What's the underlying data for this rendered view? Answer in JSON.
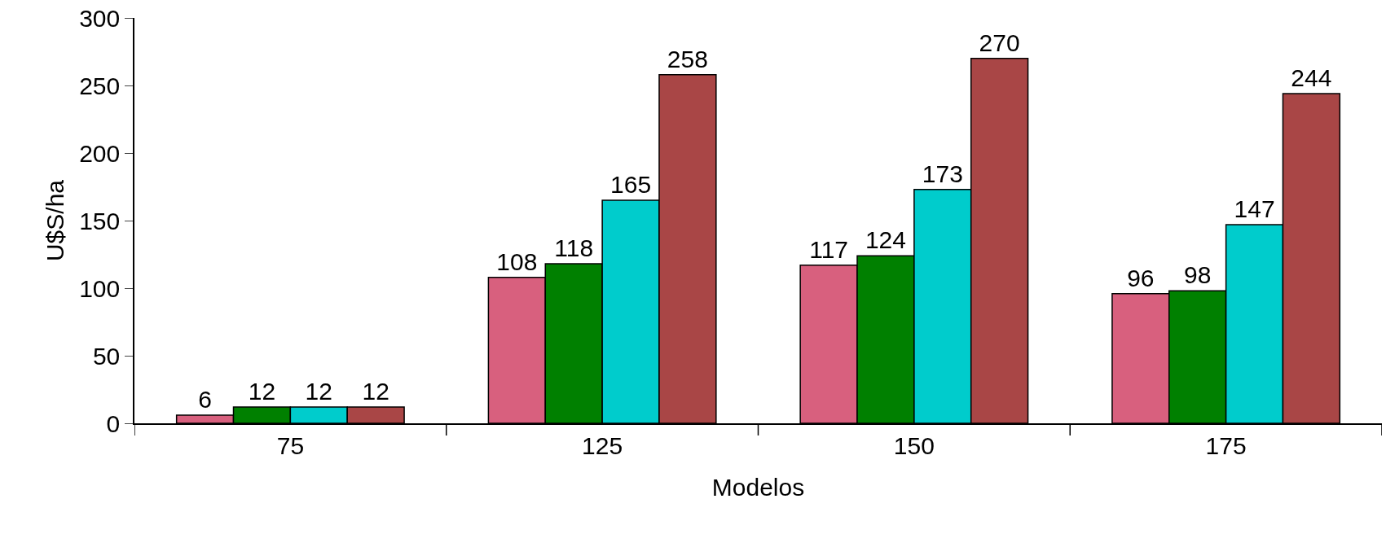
{
  "chart_data": {
    "type": "bar",
    "xlabel": "Modelos",
    "ylabel": "U$S/ha",
    "categories": [
      "75",
      "125",
      "150",
      "175"
    ],
    "series": [
      {
        "color": "#d8607e",
        "values": [
          6,
          108,
          117,
          96
        ]
      },
      {
        "color": "#008000",
        "values": [
          12,
          118,
          124,
          98
        ]
      },
      {
        "color": "#00cccc",
        "values": [
          12,
          165,
          173,
          147
        ]
      },
      {
        "color": "#a94646",
        "values": [
          12,
          258,
          270,
          244
        ]
      }
    ],
    "ylim": [
      0,
      300
    ],
    "yticks": [
      0,
      50,
      100,
      150,
      200,
      250,
      300
    ],
    "data_labels": true
  }
}
